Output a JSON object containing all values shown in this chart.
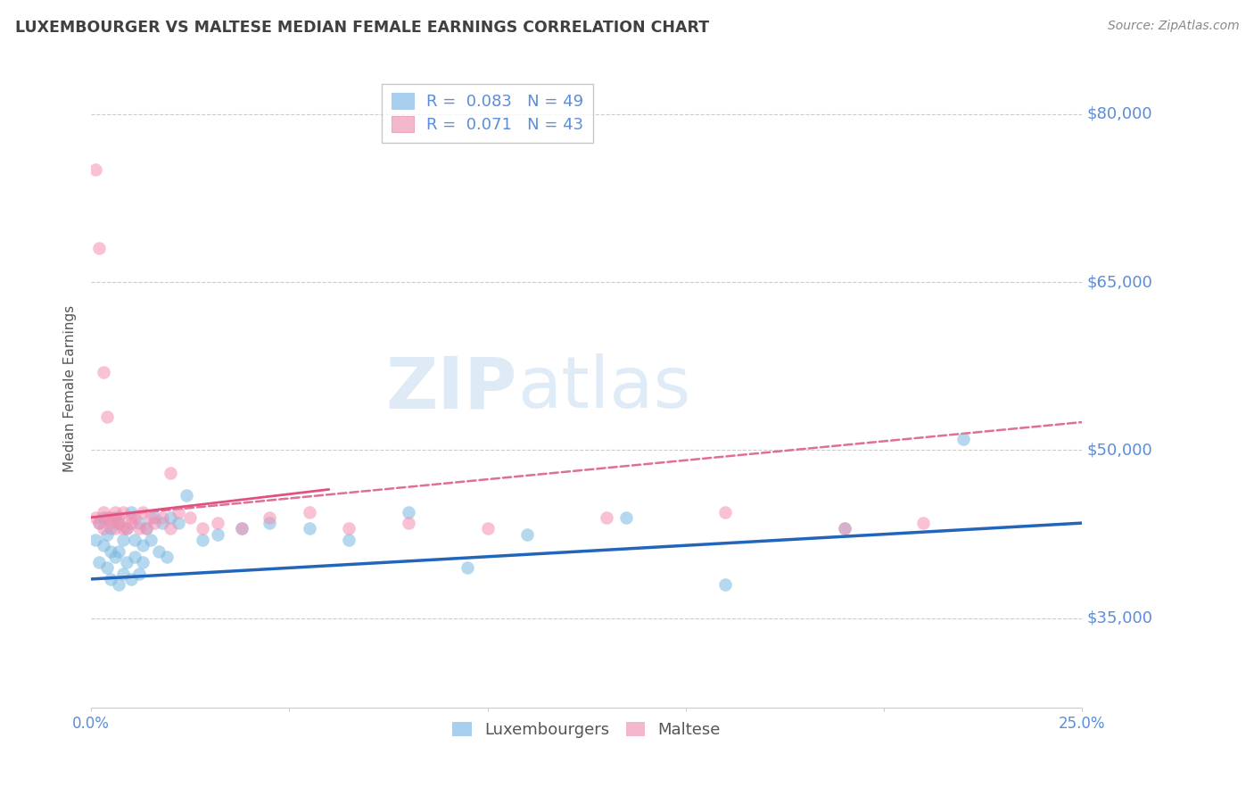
{
  "title": "LUXEMBOURGER VS MALTESE MEDIAN FEMALE EARNINGS CORRELATION CHART",
  "source": "Source: ZipAtlas.com",
  "ylabel": "Median Female Earnings",
  "xlim": [
    0.0,
    0.25
  ],
  "ylim": [
    27000,
    84000
  ],
  "ytick_values": [
    35000,
    50000,
    65000,
    80000
  ],
  "ytick_labels": [
    "$35,000",
    "$50,000",
    "$65,000",
    "$80,000"
  ],
  "legend_r1": "R =  0.083   N = 49",
  "legend_r2": "R =  0.071   N = 43",
  "bottom_legend": [
    "Luxembourgers",
    "Maltese"
  ],
  "watermark_zip": "ZIP",
  "watermark_atlas": "atlas",
  "lux_color": "#7ab8e0",
  "mal_color": "#f48fb1",
  "lux_legend_color": "#a8d0ee",
  "mal_legend_color": "#f4b8ce",
  "lux_line_color": "#2266bb",
  "mal_line_solid_color": "#e05080",
  "mal_line_dash_color": "#e07090",
  "title_color": "#404040",
  "axis_color": "#5b8dd9",
  "grid_color": "#cccccc",
  "background_color": "#ffffff",
  "lux_scatter_x": [
    0.001,
    0.002,
    0.002,
    0.003,
    0.003,
    0.004,
    0.004,
    0.005,
    0.005,
    0.005,
    0.006,
    0.006,
    0.007,
    0.007,
    0.007,
    0.008,
    0.008,
    0.009,
    0.009,
    0.01,
    0.01,
    0.011,
    0.011,
    0.012,
    0.012,
    0.013,
    0.013,
    0.014,
    0.015,
    0.016,
    0.017,
    0.018,
    0.019,
    0.02,
    0.022,
    0.024,
    0.028,
    0.032,
    0.038,
    0.045,
    0.055,
    0.065,
    0.08,
    0.095,
    0.11,
    0.135,
    0.16,
    0.19,
    0.22
  ],
  "lux_scatter_y": [
    42000,
    43500,
    40000,
    44000,
    41500,
    42500,
    39500,
    43000,
    41000,
    38500,
    44000,
    40500,
    43500,
    41000,
    38000,
    42000,
    39000,
    43000,
    40000,
    44500,
    38500,
    42000,
    40500,
    43500,
    39000,
    41500,
    40000,
    43000,
    42000,
    44000,
    41000,
    43500,
    40500,
    44000,
    43500,
    46000,
    42000,
    42500,
    43000,
    43500,
    43000,
    42000,
    44500,
    39500,
    42500,
    44000,
    38000,
    43000,
    51000
  ],
  "mal_scatter_x": [
    0.001,
    0.002,
    0.003,
    0.003,
    0.004,
    0.005,
    0.005,
    0.006,
    0.006,
    0.007,
    0.007,
    0.008,
    0.008,
    0.009,
    0.01,
    0.01,
    0.011,
    0.012,
    0.013,
    0.014,
    0.015,
    0.016,
    0.018,
    0.02,
    0.022,
    0.025,
    0.028,
    0.032,
    0.038,
    0.045,
    0.055,
    0.065,
    0.08,
    0.1,
    0.13,
    0.16,
    0.19,
    0.21,
    0.001,
    0.002,
    0.003,
    0.004,
    0.02
  ],
  "mal_scatter_y": [
    44000,
    43500,
    44500,
    43000,
    44000,
    43500,
    44000,
    43000,
    44500,
    43500,
    44000,
    43000,
    44500,
    43000,
    44000,
    43500,
    44000,
    43000,
    44500,
    43000,
    44000,
    43500,
    44000,
    43000,
    44500,
    44000,
    43000,
    43500,
    43000,
    44000,
    44500,
    43000,
    43500,
    43000,
    44000,
    44500,
    43000,
    43500,
    75000,
    68000,
    57000,
    53000,
    48000
  ],
  "lux_line_x": [
    0.0,
    0.25
  ],
  "lux_line_y": [
    38500,
    43500
  ],
  "mal_solid_line_x": [
    0.0,
    0.06
  ],
  "mal_solid_line_y": [
    44000,
    46500
  ],
  "mal_dash_line_x": [
    0.0,
    0.25
  ],
  "mal_dash_line_y": [
    44000,
    52500
  ]
}
